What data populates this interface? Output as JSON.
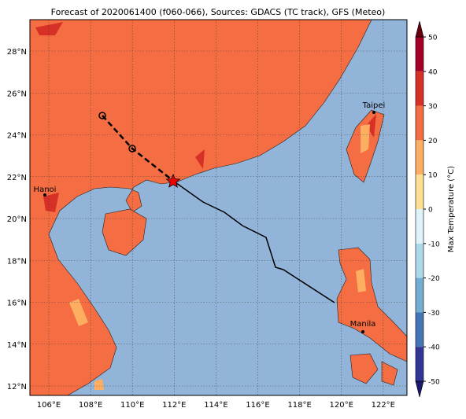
{
  "title": "Forecast of 2020061400 (f060-066), Sources: GDACS (TC track), GFS (Meteo)",
  "lon_labels": [
    "106°E",
    "108°E",
    "110°E",
    "112°E",
    "114°E",
    "116°E",
    "118°E",
    "120°E",
    "122°E"
  ],
  "lat_labels": [
    "28°N",
    "26°N",
    "24°N",
    "22°N",
    "20°N",
    "18°N",
    "16°N",
    "14°N",
    "12°N"
  ],
  "cities": [
    "Taipei",
    "Hanoi",
    "Manila"
  ],
  "colorbar": {
    "label": "Max Temperature (°C)",
    "ticks": [
      50,
      40,
      30,
      20,
      10,
      0,
      -10,
      -20,
      -30,
      -40,
      -50
    ]
  }
}
